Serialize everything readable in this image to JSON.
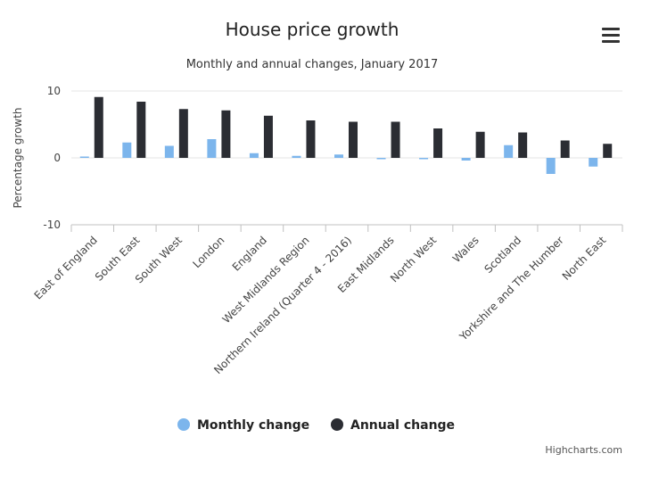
{
  "chart_data": {
    "type": "bar",
    "title": "House price growth",
    "subtitle": "Monthly and annual changes, January 2017",
    "ylabel": "Percentage growth",
    "ylim": [
      -10,
      10
    ],
    "yticks": [
      -10,
      0,
      10
    ],
    "grid": true,
    "legend_position": "bottom-center",
    "categories": [
      "East of England",
      "South East",
      "South West",
      "London",
      "England",
      "West Midlands Region",
      "Northern Ireland (Quarter 4 - 2016)",
      "East Midlands",
      "North West",
      "Wales",
      "Scotland",
      "Yorkshire and The Humber",
      "North East"
    ],
    "series": [
      {
        "name": "Monthly change",
        "color": "#7cb5ec",
        "values": [
          0.2,
          2.3,
          1.8,
          2.8,
          0.7,
          0.3,
          0.5,
          -0.2,
          -0.2,
          -0.4,
          1.9,
          -2.4,
          -1.3
        ]
      },
      {
        "name": "Annual change",
        "color": "#2b2d33",
        "values": [
          9.1,
          8.4,
          7.3,
          7.1,
          6.3,
          5.6,
          5.4,
          5.4,
          4.4,
          3.9,
          3.8,
          2.6,
          2.1
        ]
      }
    ]
  },
  "credits": "Highcharts.com",
  "menu_icon": "hamburger-menu-icon"
}
